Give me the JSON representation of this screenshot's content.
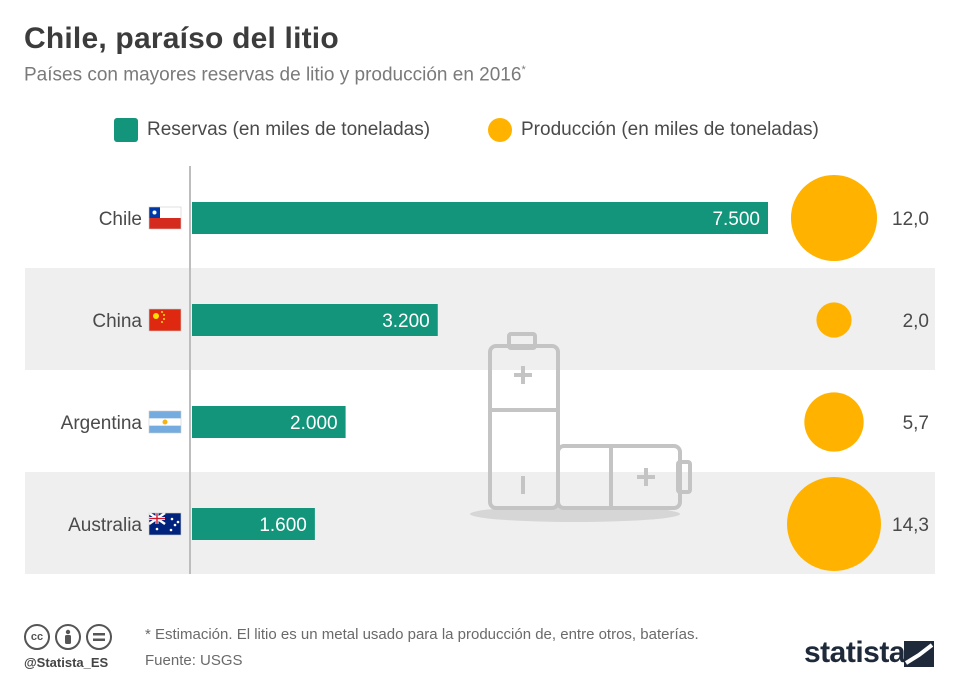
{
  "title": "Chile, paraíso del litio",
  "subtitle": "Países con mayores reservas de litio y producción en 2016",
  "subtitle_mark": "*",
  "colors": {
    "reserves": "#12957a",
    "production": "#ffb300",
    "band": "#efefef",
    "axis": "#bdbdbd",
    "icon": "#c4c4c4"
  },
  "chart_data": {
    "type": "bar",
    "categories": [
      "Chile",
      "China",
      "Argentina",
      "Australia"
    ],
    "series": [
      {
        "name": "Reservas (en miles de toneladas)",
        "values": [
          7500,
          3200,
          2000,
          1600
        ],
        "labels": [
          "7.500",
          "3.200",
          "2.000",
          "1.600"
        ]
      },
      {
        "name": "Producción (en miles de toneladas)",
        "values": [
          12.0,
          2.0,
          5.7,
          14.3
        ],
        "labels": [
          "12,0",
          "2,0",
          "5,7",
          "14,3"
        ]
      }
    ],
    "flags": [
      "chile-flag",
      "china-flag",
      "argentina-flag",
      "australia-flag"
    ],
    "production_marker": "bubble",
    "title": "Chile, paraíso del litio",
    "decoration": "battery-icon"
  },
  "footer": {
    "note": "* Estimación. El litio es un metal usado para la producción de, entre otros, baterías.",
    "source": "Fuente: USGS",
    "handle": "@Statista_ES",
    "brand": "statista",
    "license_icons": [
      "cc-icon",
      "attribution-icon",
      "no-derivatives-icon"
    ]
  }
}
